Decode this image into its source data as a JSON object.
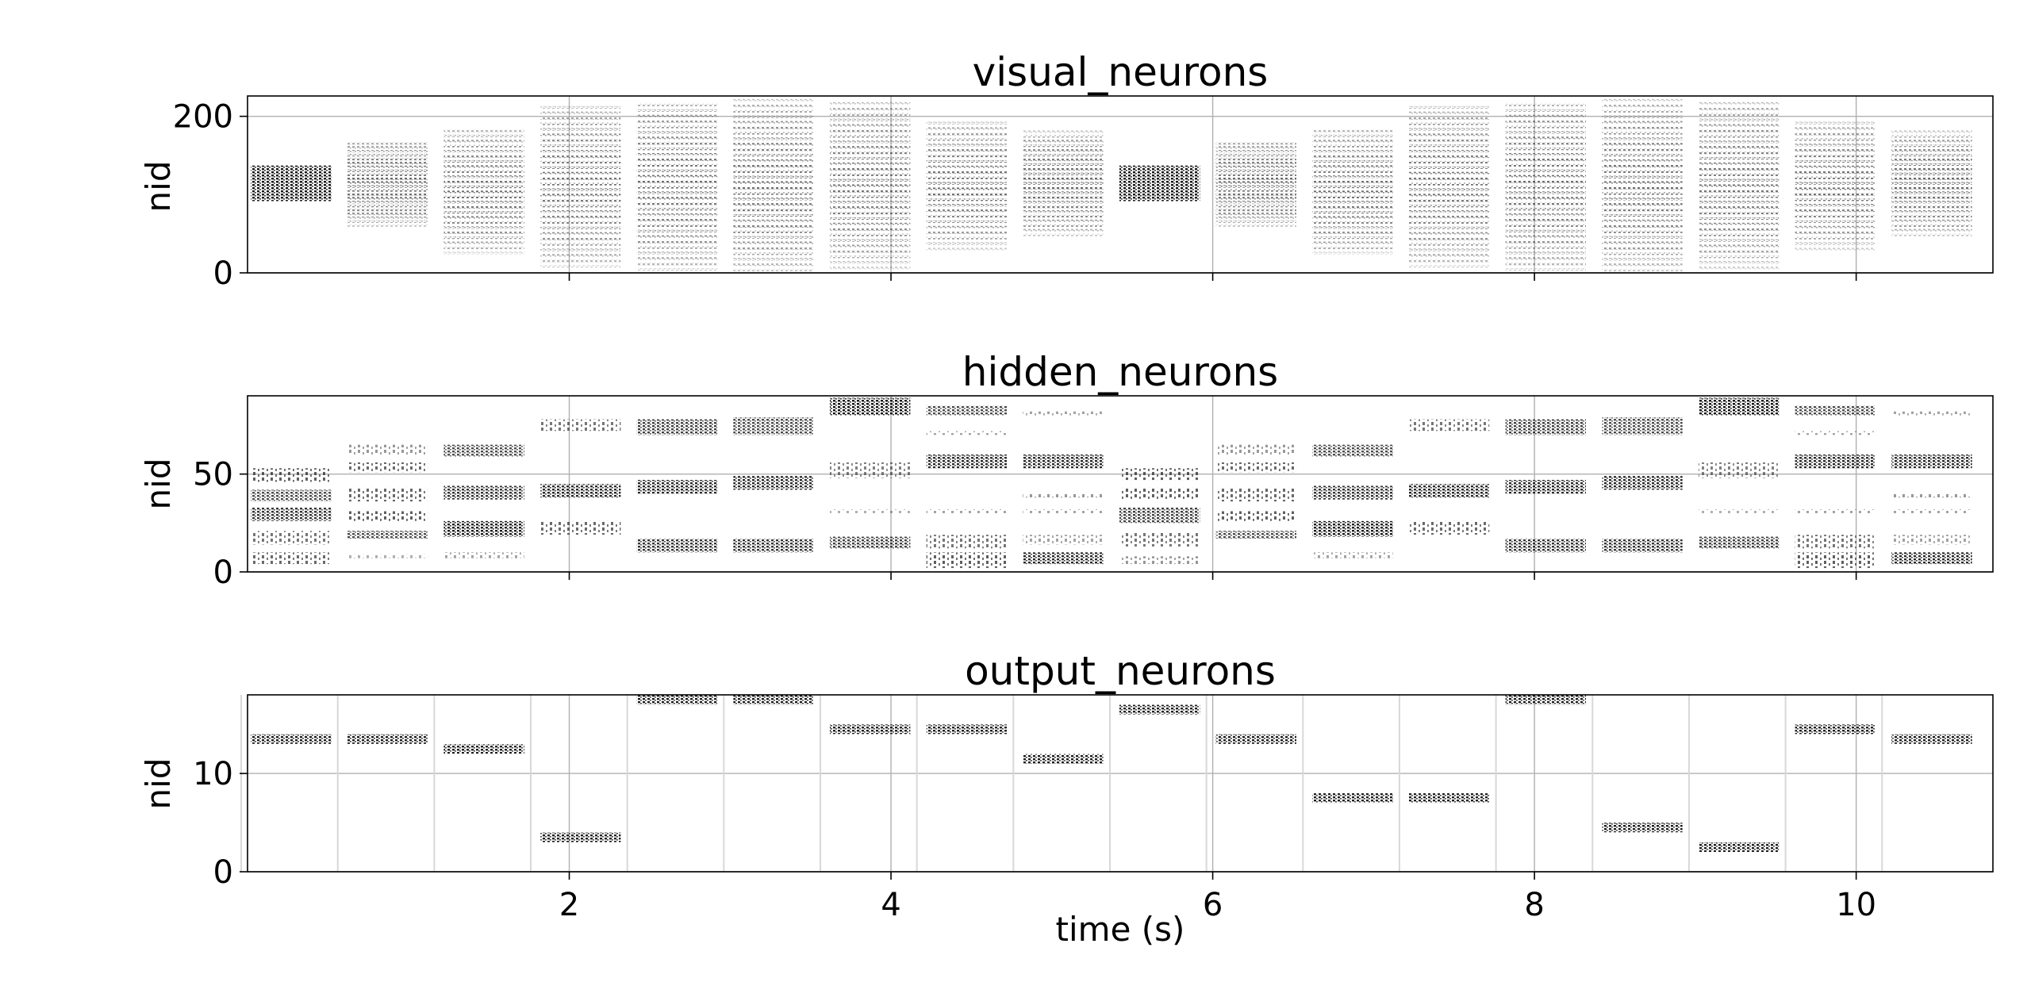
{
  "chart_data": [
    {
      "type": "raster",
      "title": "visual_neurons",
      "ylabel": "nid",
      "xlabel": "",
      "ylim": [
        0,
        226
      ],
      "yticks": [
        0,
        200
      ],
      "xlim": [
        0.0,
        10.85
      ],
      "xticks": [
        2,
        4,
        6,
        8,
        10
      ],
      "show_xtick_labels": false,
      "grid": true,
      "trials": [
        {
          "start": 0.02,
          "end": 0.52,
          "low": 92,
          "high": 136,
          "step": 1.2,
          "ink": 0.85
        },
        {
          "start": 0.62,
          "end": 1.12,
          "low": 60,
          "high": 168,
          "step": 5,
          "ink": 0.65
        },
        {
          "start": 1.22,
          "end": 1.72,
          "low": 25,
          "high": 184,
          "step": 6.5,
          "ink": 0.62
        },
        {
          "start": 1.82,
          "end": 2.32,
          "low": 8,
          "high": 216,
          "step": 7,
          "ink": 0.6
        },
        {
          "start": 2.42,
          "end": 2.92,
          "low": 4,
          "high": 220,
          "step": 7,
          "ink": 0.62
        },
        {
          "start": 3.02,
          "end": 3.52,
          "low": 3,
          "high": 222,
          "step": 7,
          "ink": 0.62
        },
        {
          "start": 3.62,
          "end": 4.12,
          "low": 6,
          "high": 220,
          "step": 7,
          "ink": 0.6
        },
        {
          "start": 4.22,
          "end": 4.72,
          "low": 30,
          "high": 195,
          "step": 7,
          "ink": 0.62
        },
        {
          "start": 4.82,
          "end": 5.32,
          "low": 48,
          "high": 180,
          "step": 6,
          "ink": 0.65
        },
        {
          "start": 5.42,
          "end": 5.92,
          "low": 92,
          "high": 136,
          "step": 1.2,
          "ink": 0.85
        },
        {
          "start": 6.02,
          "end": 6.52,
          "low": 60,
          "high": 168,
          "step": 5,
          "ink": 0.65
        },
        {
          "start": 6.62,
          "end": 7.12,
          "low": 25,
          "high": 184,
          "step": 6.5,
          "ink": 0.62
        },
        {
          "start": 7.22,
          "end": 7.72,
          "low": 8,
          "high": 216,
          "step": 7,
          "ink": 0.6
        },
        {
          "start": 7.82,
          "end": 8.32,
          "low": 4,
          "high": 220,
          "step": 7,
          "ink": 0.62
        },
        {
          "start": 8.42,
          "end": 8.92,
          "low": 3,
          "high": 222,
          "step": 7,
          "ink": 0.62
        },
        {
          "start": 9.02,
          "end": 9.52,
          "low": 6,
          "high": 220,
          "step": 7,
          "ink": 0.6
        },
        {
          "start": 9.62,
          "end": 10.12,
          "low": 30,
          "high": 195,
          "step": 7,
          "ink": 0.62
        },
        {
          "start": 10.22,
          "end": 10.72,
          "low": 48,
          "high": 180,
          "step": 6,
          "ink": 0.65
        }
      ]
    },
    {
      "type": "raster",
      "title": "hidden_neurons",
      "ylabel": "nid",
      "xlabel": "",
      "ylim": [
        0,
        90
      ],
      "yticks": [
        0,
        50
      ],
      "xlim": [
        0.0,
        10.85
      ],
      "xticks": [
        2,
        4,
        6,
        8,
        10
      ],
      "show_xtick_labels": false,
      "grid": true,
      "trials": [
        {
          "start": 0.02,
          "end": 0.52,
          "bands": [
            [
              4,
              10,
              0.4
            ],
            [
              14,
              21,
              0.35
            ],
            [
              26,
              33,
              0.6
            ],
            [
              36,
              42,
              0.5
            ],
            [
              46,
              53,
              0.45
            ]
          ]
        },
        {
          "start": 0.62,
          "end": 1.12,
          "bands": [
            [
              7,
              9,
              0.1
            ],
            [
              17,
              21,
              0.5
            ],
            [
              26,
              31,
              0.45
            ],
            [
              36,
              43,
              0.4
            ],
            [
              51,
              56,
              0.4
            ],
            [
              60,
              65,
              0.2
            ]
          ]
        },
        {
          "start": 1.22,
          "end": 1.72,
          "bands": [
            [
              7,
              10,
              0.15
            ],
            [
              18,
              26,
              0.7
            ],
            [
              37,
              44,
              0.6
            ],
            [
              59,
              65,
              0.5
            ]
          ]
        },
        {
          "start": 1.82,
          "end": 2.32,
          "bands": [
            [
              19,
              26,
              0.4
            ],
            [
              38,
              45,
              0.65
            ],
            [
              72,
              78,
              0.35
            ]
          ]
        },
        {
          "start": 2.42,
          "end": 2.92,
          "bands": [
            [
              10,
              17,
              0.6
            ],
            [
              40,
              47,
              0.65
            ],
            [
              70,
              78,
              0.55
            ]
          ]
        },
        {
          "start": 3.02,
          "end": 3.52,
          "bands": [
            [
              10,
              17,
              0.6
            ],
            [
              42,
              49,
              0.65
            ],
            [
              70,
              79,
              0.5
            ]
          ]
        },
        {
          "start": 3.62,
          "end": 4.12,
          "bands": [
            [
              12,
              18,
              0.55
            ],
            [
              30,
              32,
              0.1
            ],
            [
              48,
              56,
              0.3
            ],
            [
              80,
              89,
              0.75
            ]
          ]
        },
        {
          "start": 4.22,
          "end": 4.72,
          "bands": [
            [
              2,
              10,
              0.45
            ],
            [
              12,
              19,
              0.35
            ],
            [
              30,
              32,
              0.15
            ],
            [
              53,
              60,
              0.65
            ],
            [
              70,
              72,
              0.15
            ],
            [
              80,
              85,
              0.5
            ]
          ]
        },
        {
          "start": 4.82,
          "end": 5.32,
          "bands": [
            [
              4,
              10,
              0.65
            ],
            [
              14,
              19,
              0.15
            ],
            [
              30,
              32,
              0.15
            ],
            [
              38,
              40,
              0.2
            ],
            [
              53,
              60,
              0.65
            ],
            [
              80,
              82,
              0.15
            ]
          ]
        },
        {
          "start": 5.42,
          "end": 5.92,
          "bands": [
            [
              4,
              8,
              0.2
            ],
            [
              13,
              20,
              0.35
            ],
            [
              25,
              33,
              0.55
            ],
            [
              37,
              43,
              0.45
            ],
            [
              47,
              53,
              0.45
            ]
          ]
        },
        {
          "start": 6.02,
          "end": 6.52,
          "bands": [
            [
              17,
              21,
              0.5
            ],
            [
              26,
              31,
              0.45
            ],
            [
              36,
              43,
              0.4
            ],
            [
              51,
              56,
              0.4
            ],
            [
              60,
              65,
              0.2
            ]
          ]
        },
        {
          "start": 6.62,
          "end": 7.12,
          "bands": [
            [
              7,
              10,
              0.15
            ],
            [
              18,
              26,
              0.7
            ],
            [
              37,
              44,
              0.6
            ],
            [
              59,
              65,
              0.5
            ]
          ]
        },
        {
          "start": 7.22,
          "end": 7.72,
          "bands": [
            [
              19,
              26,
              0.4
            ],
            [
              38,
              45,
              0.65
            ],
            [
              72,
              78,
              0.35
            ]
          ]
        },
        {
          "start": 7.82,
          "end": 8.32,
          "bands": [
            [
              10,
              17,
              0.6
            ],
            [
              40,
              47,
              0.65
            ],
            [
              70,
              78,
              0.55
            ]
          ]
        },
        {
          "start": 8.42,
          "end": 8.92,
          "bands": [
            [
              10,
              17,
              0.6
            ],
            [
              42,
              49,
              0.65
            ],
            [
              70,
              79,
              0.5
            ]
          ]
        },
        {
          "start": 9.02,
          "end": 9.52,
          "bands": [
            [
              12,
              18,
              0.55
            ],
            [
              30,
              32,
              0.1
            ],
            [
              48,
              56,
              0.3
            ],
            [
              80,
              89,
              0.75
            ]
          ]
        },
        {
          "start": 9.62,
          "end": 10.12,
          "bands": [
            [
              2,
              10,
              0.45
            ],
            [
              12,
              19,
              0.35
            ],
            [
              30,
              32,
              0.15
            ],
            [
              53,
              60,
              0.65
            ],
            [
              70,
              72,
              0.15
            ],
            [
              80,
              85,
              0.5
            ]
          ]
        },
        {
          "start": 10.22,
          "end": 10.72,
          "bands": [
            [
              4,
              10,
              0.65
            ],
            [
              14,
              19,
              0.15
            ],
            [
              30,
              32,
              0.15
            ],
            [
              38,
              40,
              0.2
            ],
            [
              53,
              60,
              0.65
            ],
            [
              80,
              82,
              0.15
            ]
          ]
        }
      ]
    },
    {
      "type": "raster",
      "title": "output_neurons",
      "ylabel": "nid",
      "xlabel": "time (s)",
      "ylim": [
        0,
        18
      ],
      "yticks": [
        0,
        10
      ],
      "xlim": [
        0.0,
        10.85
      ],
      "xticks": [
        2,
        4,
        6,
        8,
        10
      ],
      "show_xtick_labels": true,
      "grid": true,
      "trials": [
        {
          "start": 0.02,
          "end": 0.52,
          "nid": 13.5
        },
        {
          "start": 0.62,
          "end": 1.12,
          "nid": 13.5
        },
        {
          "start": 1.22,
          "end": 1.72,
          "nid": 12.5
        },
        {
          "start": 1.82,
          "end": 2.32,
          "nid": 3.5
        },
        {
          "start": 2.42,
          "end": 2.92,
          "nid": 17.5
        },
        {
          "start": 3.02,
          "end": 3.52,
          "nid": 17.5
        },
        {
          "start": 3.62,
          "end": 4.12,
          "nid": 14.5
        },
        {
          "start": 4.22,
          "end": 4.72,
          "nid": 14.5
        },
        {
          "start": 4.82,
          "end": 5.32,
          "nid": 11.5
        },
        {
          "start": 5.42,
          "end": 5.92,
          "nid": 16.5
        },
        {
          "start": 6.02,
          "end": 6.52,
          "nid": 13.5
        },
        {
          "start": 6.62,
          "end": 7.12,
          "nid": 7.5
        },
        {
          "start": 7.22,
          "end": 7.72,
          "nid": 7.5
        },
        {
          "start": 7.82,
          "end": 8.32,
          "nid": 17.5
        },
        {
          "start": 8.42,
          "end": 8.92,
          "nid": 4.5
        },
        {
          "start": 9.02,
          "end": 9.52,
          "nid": 2.5
        },
        {
          "start": 9.62,
          "end": 10.12,
          "nid": 14.5
        },
        {
          "start": 10.22,
          "end": 10.72,
          "nid": 13.5
        }
      ]
    }
  ]
}
